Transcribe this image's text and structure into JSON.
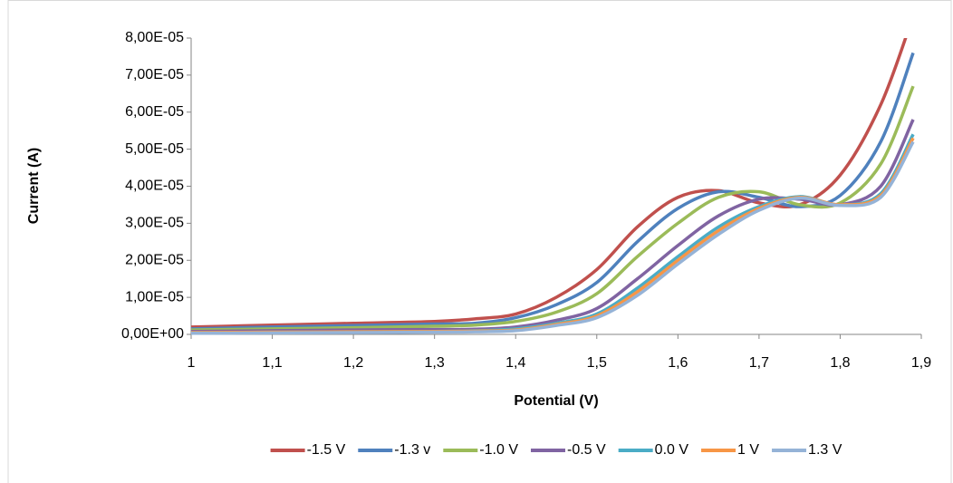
{
  "chart_data": {
    "type": "line",
    "x_label": "Potential (V)",
    "y_label": "Current (A)",
    "x": [
      1,
      1.1,
      1.2,
      1.3,
      1.35,
      1.4,
      1.45,
      1.5,
      1.55,
      1.6,
      1.65,
      1.7,
      1.75,
      1.8,
      1.85,
      1.89
    ],
    "xlim": [
      1,
      1.9
    ],
    "xticks": [
      1,
      {
        "value": 1.1,
        "label": "1,1"
      },
      {
        "value": 1.2,
        "label": "1,2"
      },
      {
        "value": 1.3,
        "label": "1,3"
      },
      {
        "value": 1.4,
        "label": "1,4"
      },
      {
        "value": 1.5,
        "label": "1,5"
      },
      {
        "value": 1.6,
        "label": "1,6"
      },
      {
        "value": 1.7,
        "label": "1,7"
      },
      {
        "value": 1.8,
        "label": "1,8"
      },
      {
        "value": 1.9,
        "label": "1,9"
      }
    ],
    "ylim": [
      0,
      8e-05
    ],
    "yticks": [
      {
        "value": 0,
        "label": "0,00E+00"
      },
      {
        "value": 1e-05,
        "label": "1,00E-05"
      },
      {
        "value": 2e-05,
        "label": "2,00E-05"
      },
      {
        "value": 3e-05,
        "label": "3,00E-05"
      },
      {
        "value": 4e-05,
        "label": "4,00E-05"
      },
      {
        "value": 5e-05,
        "label": "5,00E-05"
      },
      {
        "value": 6e-05,
        "label": "6,00E-05"
      },
      {
        "value": 7e-05,
        "label": "7,00E-05"
      },
      {
        "value": 8e-05,
        "label": "8,00E-05"
      }
    ],
    "legend": "bottom",
    "series": [
      {
        "name": "-1.5 V",
        "color": "#c0504d",
        "values": [
          2e-06,
          2.5e-06,
          3e-06,
          3.5e-06,
          4.2e-06,
          5.5e-06,
          1e-05,
          1.75e-05,
          2.9e-05,
          3.7e-05,
          3.88e-05,
          3.55e-05,
          3.5e-05,
          4.3e-05,
          6.2e-05,
          8.6e-05
        ]
      },
      {
        "name": "-1.3 v",
        "color": "#4f81bd",
        "values": [
          1.5e-06,
          2e-06,
          2.4e-06,
          2.8e-06,
          3e-06,
          4.5e-06,
          8e-06,
          1.4e-05,
          2.5e-05,
          3.4e-05,
          3.85e-05,
          3.7e-05,
          3.45e-05,
          3.75e-05,
          5.2e-05,
          7.6e-05
        ]
      },
      {
        "name": "-1.0 V",
        "color": "#9bbb59",
        "values": [
          1.2e-06,
          1.5e-06,
          1.8e-06,
          2.2e-06,
          2.5e-06,
          3.5e-06,
          6e-06,
          1.1e-05,
          2.1e-05,
          3e-05,
          3.7e-05,
          3.85e-05,
          3.5e-05,
          3.55e-05,
          4.6e-05,
          6.7e-05
        ]
      },
      {
        "name": "-0.5 V",
        "color": "#8064a2",
        "values": [
          8e-07,
          1e-06,
          1.2e-06,
          1.3e-06,
          1.4e-06,
          2e-06,
          3.8e-06,
          7e-06,
          1.5e-05,
          2.4e-05,
          3.2e-05,
          3.65e-05,
          3.65e-05,
          3.5e-05,
          4e-05,
          5.8e-05
        ]
      },
      {
        "name": "0.0 V",
        "color": "#4bacc6",
        "values": [
          5e-07,
          6e-07,
          7e-07,
          8e-07,
          1e-06,
          1.5e-06,
          3e-06,
          5.5e-06,
          1.25e-05,
          2.1e-05,
          2.9e-05,
          3.45e-05,
          3.72e-05,
          3.5e-05,
          3.8e-05,
          5.4e-05
        ]
      },
      {
        "name": "1 V",
        "color": "#f79646",
        "values": [
          5e-07,
          6e-07,
          7e-07,
          8e-07,
          9e-07,
          1.2e-06,
          2.7e-06,
          5e-06,
          1.15e-05,
          2e-05,
          2.8e-05,
          3.4e-05,
          3.7e-05,
          3.5e-05,
          3.75e-05,
          5.3e-05
        ]
      },
      {
        "name": "1.3 V",
        "color": "#95b3d7",
        "values": [
          3e-07,
          4e-07,
          5e-07,
          6e-07,
          7e-07,
          1e-06,
          2.4e-06,
          4.5e-06,
          1.05e-05,
          1.9e-05,
          2.7e-05,
          3.35e-05,
          3.68e-05,
          3.48e-05,
          3.7e-05,
          5.2e-05
        ]
      }
    ]
  }
}
